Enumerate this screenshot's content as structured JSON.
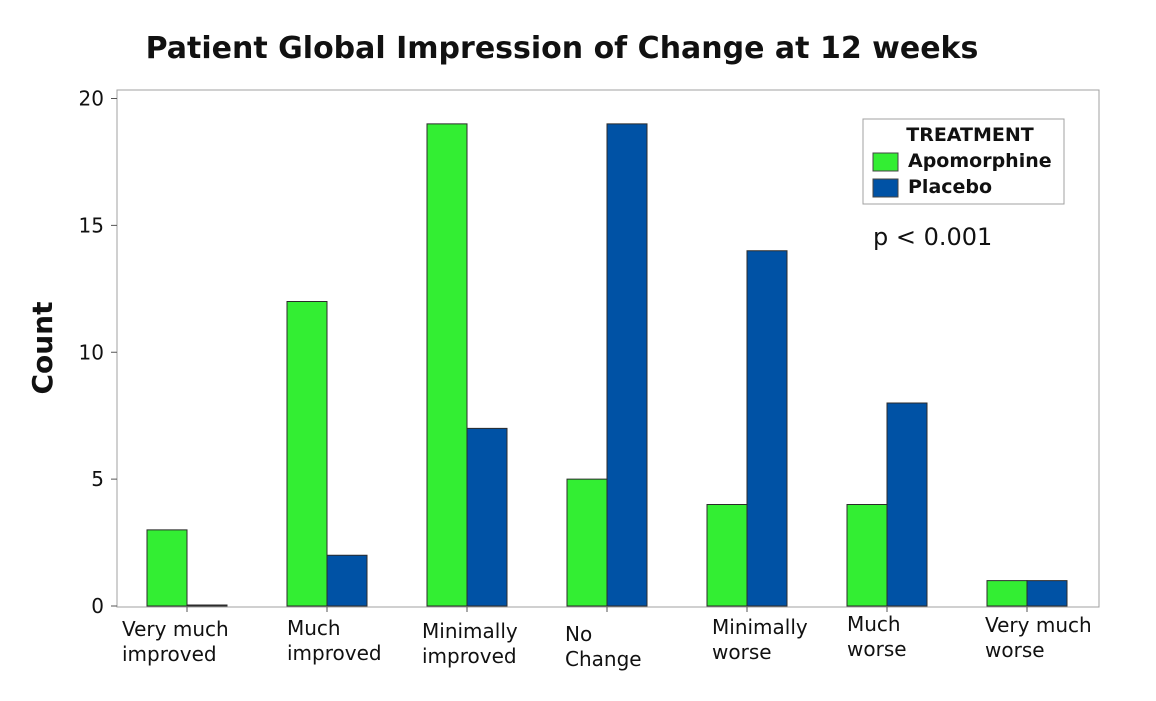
{
  "chart_data": {
    "type": "bar",
    "title": "Patient Global Impression of Change at 12 weeks",
    "xlabel": "",
    "ylabel": "Count",
    "ylim": [
      0,
      20
    ],
    "yticks": [
      "0",
      "5",
      "10",
      "15",
      "20"
    ],
    "categories": [
      [
        "Very much",
        "improved"
      ],
      [
        "Much",
        "improved"
      ],
      [
        "Minimally",
        "improved"
      ],
      [
        "No",
        "Change"
      ],
      [
        "Minimally",
        "worse"
      ],
      [
        "Much",
        "worse"
      ],
      [
        "Very much",
        "worse"
      ]
    ],
    "legend": {
      "title": "TREATMENT",
      "placement": "top-right"
    },
    "series": [
      {
        "name": "Apomorphine",
        "color": "#33ee33",
        "values": [
          3,
          12,
          19,
          5,
          4,
          4,
          1
        ]
      },
      {
        "name": "Placebo",
        "color": "#0052a5",
        "values": [
          0,
          2,
          7,
          19,
          14,
          8,
          1
        ]
      }
    ],
    "annotation": "p < 0.001",
    "grid": false
  }
}
